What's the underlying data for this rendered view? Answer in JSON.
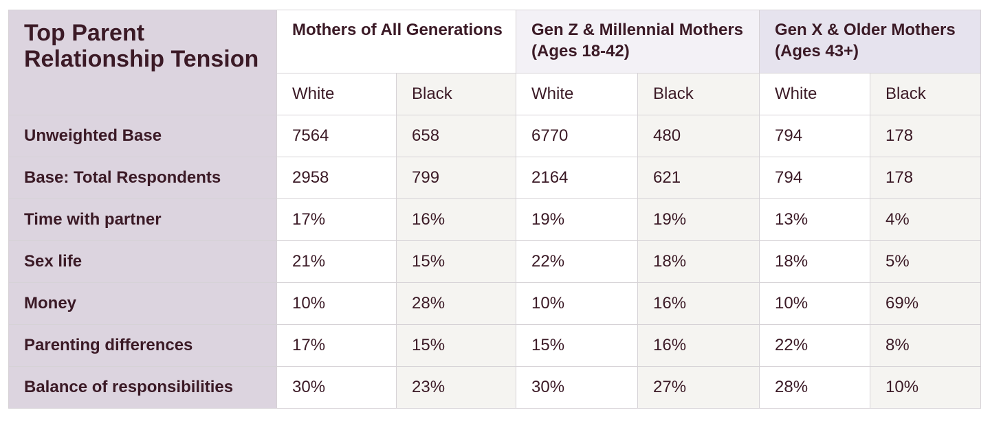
{
  "table": {
    "corner_title": "Top Parent Relationship Tension",
    "groups": [
      {
        "label": "Mothers of All Generations",
        "sub": [
          "White",
          "Black"
        ]
      },
      {
        "label": "Gen Z & Millennial Mothers (Ages 18-42)",
        "sub": [
          "White",
          "Black"
        ]
      },
      {
        "label": "Gen X & Older Mothers (Ages 43+)",
        "sub": [
          "White",
          "Black"
        ]
      }
    ],
    "rows": [
      {
        "label": "Unweighted Base",
        "values": [
          "7564",
          "658",
          "6770",
          "480",
          "794",
          "178"
        ]
      },
      {
        "label": "Base: Total Respondents",
        "values": [
          "2958",
          "799",
          "2164",
          "621",
          "794",
          "178"
        ]
      },
      {
        "label": "Time with partner",
        "values": [
          "17%",
          "16%",
          "19%",
          "19%",
          "13%",
          "4%"
        ]
      },
      {
        "label": "Sex life",
        "values": [
          "21%",
          "15%",
          "22%",
          "18%",
          "18%",
          "5%"
        ]
      },
      {
        "label": "Money",
        "values": [
          "10%",
          "28%",
          "10%",
          "16%",
          "10%",
          "69%"
        ]
      },
      {
        "label": "Parenting differences",
        "values": [
          "17%",
          "15%",
          "15%",
          "16%",
          "22%",
          "8%"
        ]
      },
      {
        "label": "Balance of responsibilities",
        "values": [
          "30%",
          "23%",
          "30%",
          "27%",
          "28%",
          "10%"
        ]
      }
    ]
  }
}
